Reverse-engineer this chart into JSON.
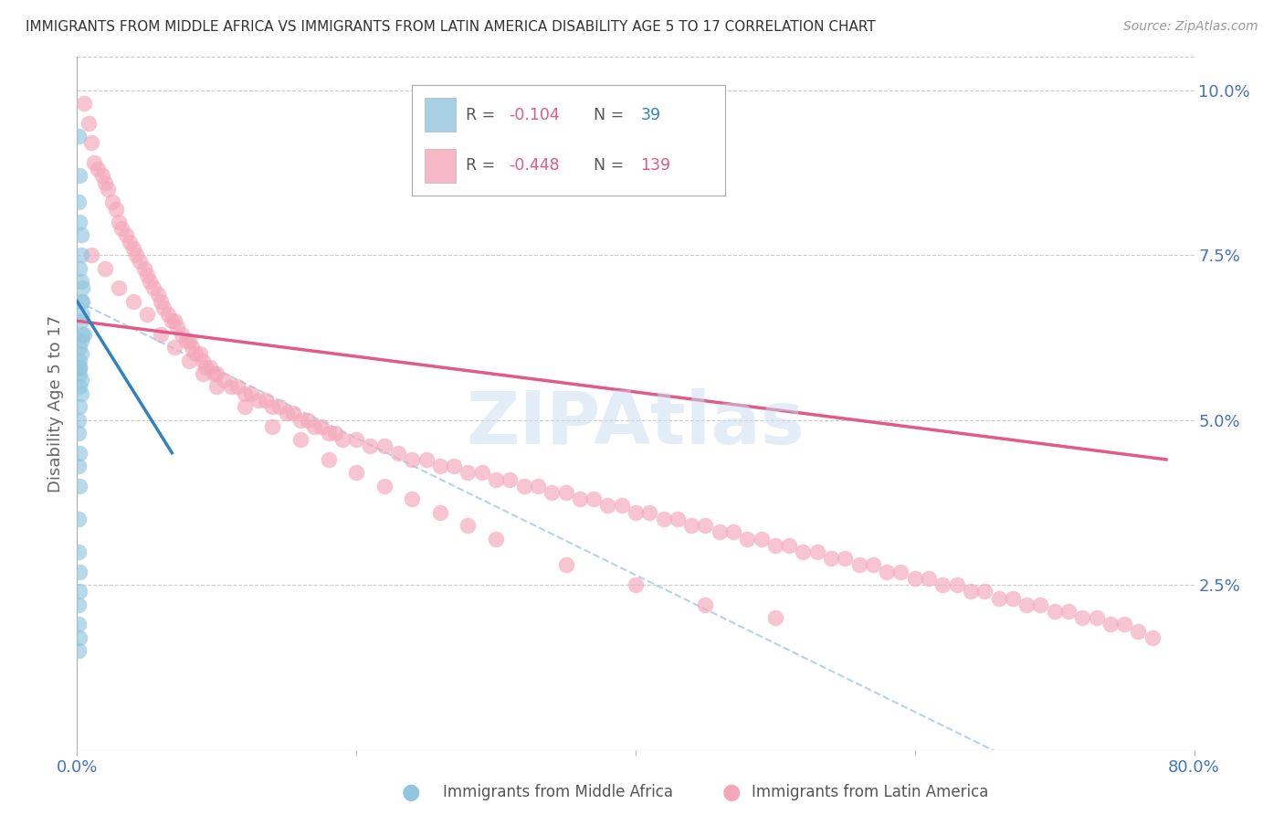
{
  "title": "IMMIGRANTS FROM MIDDLE AFRICA VS IMMIGRANTS FROM LATIN AMERICA DISABILITY AGE 5 TO 17 CORRELATION CHART",
  "source": "Source: ZipAtlas.com",
  "ylabel": "Disability Age 5 to 17",
  "right_yticks": [
    0.025,
    0.05,
    0.075,
    0.1
  ],
  "right_yticklabels": [
    "2.5%",
    "5.0%",
    "7.5%",
    "10.0%"
  ],
  "xlim": [
    0.0,
    0.8
  ],
  "ylim": [
    0.0,
    0.105
  ],
  "color_blue": "#92c5de",
  "color_pink": "#f4a7b9",
  "color_blue_line": "#3182bd",
  "color_pink_line": "#e05a8a",
  "color_dashed": "#9ecae1",
  "blue_r": "-0.104",
  "blue_n": "39",
  "pink_r": "-0.448",
  "pink_n": "139",
  "blue_x": [
    0.001,
    0.002,
    0.001,
    0.002,
    0.003,
    0.003,
    0.002,
    0.003,
    0.004,
    0.003,
    0.004,
    0.004,
    0.003,
    0.004,
    0.005,
    0.003,
    0.002,
    0.003,
    0.002,
    0.002,
    0.002,
    0.002,
    0.003,
    0.002,
    0.003,
    0.002,
    0.001,
    0.001,
    0.002,
    0.001,
    0.002,
    0.001,
    0.001,
    0.002,
    0.002,
    0.001,
    0.001,
    0.002,
    0.001
  ],
  "blue_y": [
    0.093,
    0.087,
    0.083,
    0.08,
    0.078,
    0.075,
    0.073,
    0.071,
    0.07,
    0.068,
    0.068,
    0.066,
    0.065,
    0.063,
    0.063,
    0.062,
    0.061,
    0.06,
    0.059,
    0.058,
    0.058,
    0.057,
    0.056,
    0.055,
    0.054,
    0.052,
    0.05,
    0.048,
    0.045,
    0.043,
    0.04,
    0.035,
    0.03,
    0.027,
    0.024,
    0.022,
    0.019,
    0.017,
    0.015
  ],
  "pink_x": [
    0.005,
    0.008,
    0.01,
    0.012,
    0.015,
    0.018,
    0.02,
    0.022,
    0.025,
    0.028,
    0.03,
    0.032,
    0.035,
    0.038,
    0.04,
    0.042,
    0.045,
    0.048,
    0.05,
    0.052,
    0.055,
    0.058,
    0.06,
    0.062,
    0.065,
    0.068,
    0.07,
    0.072,
    0.075,
    0.078,
    0.08,
    0.082,
    0.085,
    0.088,
    0.09,
    0.092,
    0.095,
    0.098,
    0.1,
    0.105,
    0.11,
    0.115,
    0.12,
    0.125,
    0.13,
    0.135,
    0.14,
    0.145,
    0.15,
    0.155,
    0.16,
    0.165,
    0.17,
    0.175,
    0.18,
    0.185,
    0.19,
    0.2,
    0.21,
    0.22,
    0.23,
    0.24,
    0.25,
    0.26,
    0.27,
    0.28,
    0.29,
    0.3,
    0.31,
    0.32,
    0.33,
    0.34,
    0.35,
    0.36,
    0.37,
    0.38,
    0.39,
    0.4,
    0.41,
    0.42,
    0.43,
    0.44,
    0.45,
    0.46,
    0.47,
    0.48,
    0.49,
    0.5,
    0.51,
    0.52,
    0.53,
    0.54,
    0.55,
    0.56,
    0.57,
    0.58,
    0.59,
    0.6,
    0.61,
    0.62,
    0.63,
    0.64,
    0.65,
    0.66,
    0.67,
    0.68,
    0.69,
    0.7,
    0.71,
    0.72,
    0.73,
    0.74,
    0.75,
    0.76,
    0.77,
    0.01,
    0.02,
    0.03,
    0.04,
    0.05,
    0.06,
    0.07,
    0.08,
    0.09,
    0.1,
    0.12,
    0.14,
    0.16,
    0.18,
    0.2,
    0.22,
    0.24,
    0.26,
    0.28,
    0.3,
    0.35,
    0.4,
    0.45,
    0.5
  ],
  "pink_y": [
    0.098,
    0.095,
    0.092,
    0.089,
    0.088,
    0.087,
    0.086,
    0.085,
    0.083,
    0.082,
    0.08,
    0.079,
    0.078,
    0.077,
    0.076,
    0.075,
    0.074,
    0.073,
    0.072,
    0.071,
    0.07,
    0.069,
    0.068,
    0.067,
    0.066,
    0.065,
    0.065,
    0.064,
    0.063,
    0.062,
    0.062,
    0.061,
    0.06,
    0.06,
    0.059,
    0.058,
    0.058,
    0.057,
    0.057,
    0.056,
    0.055,
    0.055,
    0.054,
    0.054,
    0.053,
    0.053,
    0.052,
    0.052,
    0.051,
    0.051,
    0.05,
    0.05,
    0.049,
    0.049,
    0.048,
    0.048,
    0.047,
    0.047,
    0.046,
    0.046,
    0.045,
    0.044,
    0.044,
    0.043,
    0.043,
    0.042,
    0.042,
    0.041,
    0.041,
    0.04,
    0.04,
    0.039,
    0.039,
    0.038,
    0.038,
    0.037,
    0.037,
    0.036,
    0.036,
    0.035,
    0.035,
    0.034,
    0.034,
    0.033,
    0.033,
    0.032,
    0.032,
    0.031,
    0.031,
    0.03,
    0.03,
    0.029,
    0.029,
    0.028,
    0.028,
    0.027,
    0.027,
    0.026,
    0.026,
    0.025,
    0.025,
    0.024,
    0.024,
    0.023,
    0.023,
    0.022,
    0.022,
    0.021,
    0.021,
    0.02,
    0.02,
    0.019,
    0.019,
    0.018,
    0.017,
    0.075,
    0.073,
    0.07,
    0.068,
    0.066,
    0.063,
    0.061,
    0.059,
    0.057,
    0.055,
    0.052,
    0.049,
    0.047,
    0.044,
    0.042,
    0.04,
    0.038,
    0.036,
    0.034,
    0.032,
    0.028,
    0.025,
    0.022,
    0.02
  ]
}
